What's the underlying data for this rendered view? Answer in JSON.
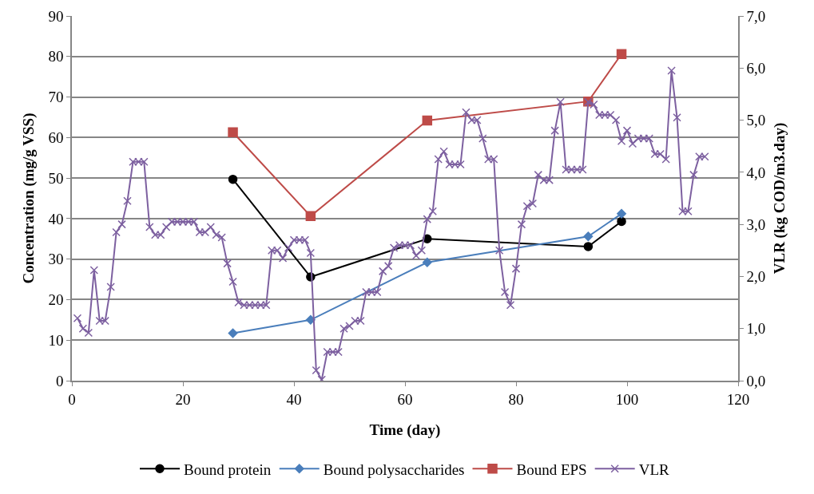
{
  "chart_data": {
    "type": "line",
    "xlabel": "Time (day)",
    "ylabel": "Concentration (mg/g VSS)",
    "y2label": "VLR (kg COD/m3.day)",
    "xlim": [
      0,
      120
    ],
    "xticks": [
      0,
      20,
      40,
      60,
      80,
      100,
      120
    ],
    "ylim": [
      0,
      90
    ],
    "yticks": [
      0,
      10,
      20,
      30,
      40,
      50,
      60,
      70,
      80,
      90
    ],
    "y2lim": [
      0,
      7
    ],
    "y2ticks": [
      {
        "value": 0,
        "label": "0,0"
      },
      {
        "value": 1,
        "label": "1,0"
      },
      {
        "value": 2,
        "label": "2,0"
      },
      {
        "value": 3,
        "label": "3,0"
      },
      {
        "value": 4,
        "label": "4,0"
      },
      {
        "value": 5,
        "label": "5,0"
      },
      {
        "value": 6,
        "label": "6,0"
      },
      {
        "value": 7,
        "label": "7,0"
      }
    ],
    "grid": "y",
    "legend": "bottom",
    "line_style": "solid",
    "series": [
      {
        "name": "Bound protein",
        "color": "#000000",
        "marker": "circle",
        "x": [
          29,
          43,
          64,
          93,
          99
        ],
        "values": [
          49.7,
          25.6,
          35,
          33.1,
          39.3
        ]
      },
      {
        "name": "Bound polysaccharides",
        "color": "#4a7ebb",
        "marker": "diamond",
        "x": [
          29,
          43,
          64,
          93,
          99
        ],
        "values": [
          11.7,
          15,
          29.2,
          35.6,
          41.2
        ]
      },
      {
        "name": "Bound EPS",
        "color": "#be4b48",
        "marker": "square",
        "x": [
          29,
          43,
          64,
          93,
          99
        ],
        "values": [
          61.3,
          40.6,
          64.2,
          68.9,
          80.6
        ]
      },
      {
        "name": "VLR",
        "color": "#7d60a0",
        "marker": "cross",
        "axis": "y2",
        "x": [
          1,
          2,
          3,
          4,
          5,
          6,
          7,
          8,
          9,
          10,
          11,
          12,
          13,
          14,
          15,
          16,
          17,
          18,
          19,
          20,
          21,
          22,
          23,
          24,
          25,
          26,
          27,
          28,
          29,
          30,
          31,
          32,
          33,
          34,
          35,
          36,
          37,
          38,
          39,
          40,
          41,
          42,
          43,
          44,
          45,
          46,
          47,
          48,
          49,
          50,
          51,
          52,
          53,
          54,
          55,
          56,
          57,
          58,
          59,
          60,
          61,
          62,
          63,
          64,
          65,
          66,
          67,
          68,
          69,
          70,
          71,
          72,
          73,
          74,
          75,
          76,
          77,
          78,
          79,
          80,
          81,
          82,
          83,
          84,
          85,
          86,
          87,
          88,
          89,
          90,
          91,
          92,
          93,
          94,
          95,
          96,
          97,
          98,
          99,
          100,
          101,
          102,
          103,
          104,
          105,
          106,
          107,
          108,
          109,
          110,
          111,
          112,
          113,
          114
        ],
        "values": [
          1.2,
          1.0,
          0.92,
          2.12,
          1.15,
          1.15,
          1.8,
          2.85,
          3.0,
          3.45,
          4.2,
          4.2,
          4.2,
          2.95,
          2.8,
          2.8,
          2.95,
          3.05,
          3.05,
          3.05,
          3.05,
          3.05,
          2.85,
          2.85,
          2.95,
          2.8,
          2.75,
          2.25,
          1.9,
          1.5,
          1.45,
          1.45,
          1.45,
          1.45,
          1.45,
          2.5,
          2.5,
          2.35,
          2.55,
          2.7,
          2.7,
          2.7,
          2.45,
          0.2,
          0.02,
          0.55,
          0.55,
          0.55,
          1.0,
          1.05,
          1.15,
          1.15,
          1.7,
          1.7,
          1.7,
          2.1,
          2.2,
          2.55,
          2.6,
          2.6,
          2.6,
          2.4,
          2.5,
          3.1,
          3.25,
          4.25,
          4.4,
          4.15,
          4.15,
          4.15,
          5.15,
          5.0,
          5.0,
          4.65,
          4.25,
          4.25,
          2.5,
          1.7,
          1.45,
          2.15,
          3.0,
          3.35,
          3.4,
          3.95,
          3.85,
          3.85,
          4.8,
          5.35,
          4.05,
          4.05,
          4.05,
          4.05,
          5.35,
          5.3,
          5.1,
          5.1,
          5.1,
          5.0,
          4.6,
          4.8,
          4.55,
          4.65,
          4.65,
          4.65,
          4.35,
          4.35,
          4.25,
          5.95,
          5.05,
          3.25,
          3.25,
          3.95,
          4.3,
          4.3
        ]
      }
    ]
  }
}
